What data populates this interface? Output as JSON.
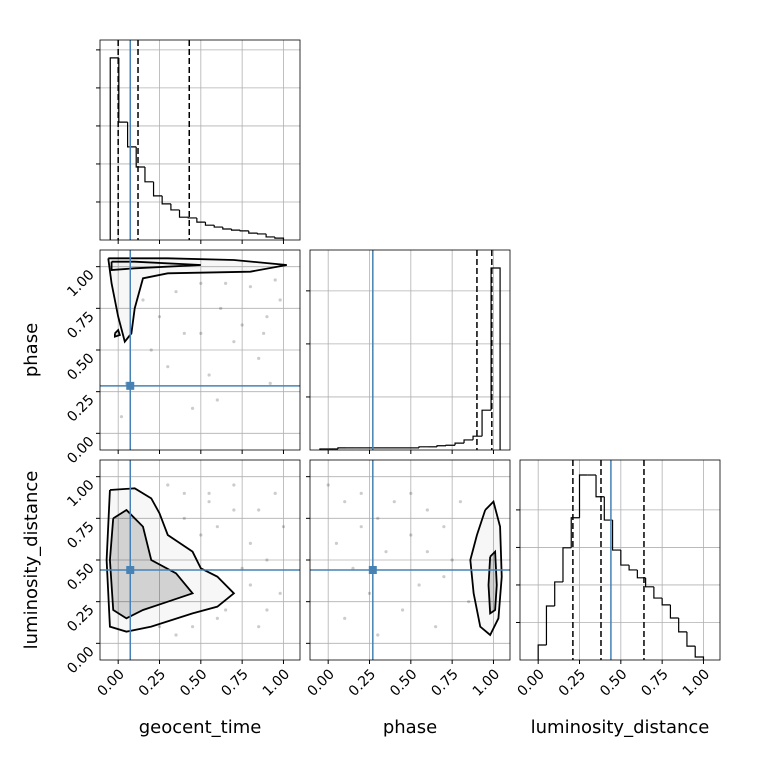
{
  "chart_data": [
    {
      "type": "histogram",
      "variable": "geocent_time",
      "color": "#000000",
      "truth_color": "#4682b4",
      "grid": true,
      "bins": [
        -0.048,
        0.004,
        0.057,
        0.109,
        0.162,
        0.214,
        0.266,
        0.319,
        0.371,
        0.424,
        0.476,
        0.528,
        0.581,
        0.633,
        0.686,
        0.738,
        0.79,
        0.843,
        0.895,
        0.948,
        1.0
      ],
      "counts": [
        4.79,
        3.1,
        2.45,
        1.92,
        1.53,
        1.16,
        0.95,
        0.79,
        0.6,
        0.58,
        0.47,
        0.39,
        0.34,
        0.29,
        0.26,
        0.24,
        0.18,
        0.16,
        0.08,
        0.05
      ],
      "truth": 0.073,
      "quantiles": [
        0.0,
        0.12,
        0.43
      ],
      "xlim": [
        -0.11,
        1.1
      ],
      "xticks": [
        0,
        0.25,
        0.5,
        0.75,
        1
      ],
      "ylim": [
        0,
        5.26
      ],
      "yticks": [
        1,
        2,
        3,
        4,
        5
      ]
    },
    {
      "type": "scatter",
      "y_label": "phase",
      "color": "#000000",
      "truth_color": "#4682b4",
      "grid": true,
      "x": [
        0.35,
        0.5,
        0.62,
        0.8,
        0.9,
        0.95,
        0.4,
        0.7,
        0.85,
        0.25,
        0.55,
        0.98,
        0.6,
        0.3,
        0.75,
        0.45,
        0.92,
        0.2,
        0.05,
        0.02,
        0.65,
        0.88,
        0.15,
        0.5
      ],
      "y": [
        0.85,
        0.9,
        0.75,
        0.88,
        0.7,
        0.92,
        0.6,
        0.55,
        0.45,
        0.7,
        0.35,
        0.8,
        0.2,
        0.4,
        0.65,
        0.15,
        0.3,
        0.5,
        0.3,
        0.1,
        0.9,
        0.6,
        0.8,
        0.6
      ],
      "contours": [
        {
          "x": [
            -0.06,
            0.3,
            0.7,
            1.02,
            0.8,
            0.3,
            0.15,
            0.1,
            0.08,
            0.04,
            0.0,
            -0.04,
            -0.06
          ],
          "y": [
            1.05,
            1.05,
            1.04,
            1.01,
            0.97,
            0.96,
            0.93,
            0.75,
            0.6,
            0.55,
            0.7,
            0.9,
            1.05
          ]
        },
        {
          "x": [
            -0.04,
            0.1,
            0.5,
            0.1,
            -0.04,
            -0.04
          ],
          "y": [
            1.03,
            1.03,
            1.01,
            0.99,
            0.98,
            1.03
          ]
        },
        {
          "x": [
            -0.02,
            0.0,
            0.01,
            -0.02,
            -0.02
          ],
          "y": [
            0.6,
            0.62,
            0.59,
            0.58,
            0.6
          ]
        }
      ],
      "truth_x": 0.073,
      "truth_y": 0.285,
      "xlim": [
        -0.11,
        1.1
      ],
      "xticks": [
        0,
        0.25,
        0.5,
        0.75,
        1
      ],
      "ylim": [
        -0.1,
        1.1
      ],
      "yticks": [
        {
          "value": 0,
          "label": "0.00"
        },
        {
          "value": 0.25,
          "label": "0.25"
        },
        {
          "value": 0.5,
          "label": "0.50"
        },
        {
          "value": 0.75,
          "label": "0.75"
        },
        {
          "value": 1,
          "label": "1.00"
        }
      ]
    },
    {
      "type": "histogram",
      "variable": "phase",
      "color": "#000000",
      "truth_color": "#4682b4",
      "grid": true,
      "bins": [
        -0.05,
        0.0045,
        0.059,
        0.1135,
        0.168,
        0.2225,
        0.277,
        0.3315,
        0.386,
        0.4405,
        0.495,
        0.5495,
        0.604,
        0.6585,
        0.713,
        0.7675,
        0.822,
        0.8765,
        0.931,
        0.9855,
        1.04
      ],
      "counts": [
        0.02,
        0.02,
        0.04,
        0.04,
        0.04,
        0.04,
        0.04,
        0.04,
        0.04,
        0.04,
        0.04,
        0.06,
        0.06,
        0.08,
        0.09,
        0.13,
        0.19,
        0.26,
        0.75,
        3.43
      ],
      "truth": 0.27,
      "quantiles": [
        0.9,
        0.99
      ],
      "xlim": [
        -0.11,
        1.1
      ],
      "xticks": [
        0,
        0.25,
        0.5,
        0.75,
        1
      ],
      "ylim": [
        0,
        3.77
      ],
      "yticks": [
        1,
        2,
        3
      ]
    },
    {
      "type": "scatter",
      "x_label": "geocent_time",
      "y_label": "luminosity_distance",
      "color": "#000000",
      "truth_color": "#4682b4",
      "grid": true,
      "x": [
        0.4,
        0.55,
        0.7,
        0.85,
        0.95,
        0.6,
        0.8,
        0.9,
        1.0,
        0.3,
        0.5,
        0.75,
        0.65,
        0.9,
        0.45,
        0.35,
        0.8,
        0.98,
        0.6,
        0.7,
        0.25,
        0.55,
        0.85,
        0.4
      ],
      "y": [
        0.9,
        0.85,
        0.95,
        0.8,
        0.9,
        0.7,
        0.6,
        0.5,
        0.7,
        0.95,
        0.65,
        0.45,
        0.2,
        0.2,
        0.1,
        0.05,
        0.35,
        0.3,
        0.15,
        0.8,
        0.1,
        0.9,
        0.1,
        0.75
      ],
      "contours": [
        {
          "x": [
            -0.05,
            0.1,
            0.2,
            0.25,
            0.3,
            0.45,
            0.5,
            0.6,
            0.7,
            0.6,
            0.45,
            0.2,
            0.05,
            -0.05,
            -0.07,
            -0.05
          ],
          "y": [
            0.92,
            0.93,
            0.87,
            0.78,
            0.65,
            0.55,
            0.45,
            0.4,
            0.3,
            0.22,
            0.18,
            0.1,
            0.07,
            0.1,
            0.5,
            0.92
          ]
        },
        {
          "x": [
            -0.03,
            0.05,
            0.15,
            0.2,
            0.35,
            0.45,
            0.3,
            0.15,
            0.05,
            -0.03,
            -0.05,
            -0.03
          ],
          "y": [
            0.75,
            0.8,
            0.7,
            0.5,
            0.42,
            0.3,
            0.25,
            0.2,
            0.15,
            0.2,
            0.5,
            0.75
          ]
        }
      ],
      "truth_x": 0.073,
      "truth_y": 0.44,
      "xlim": [
        -0.11,
        1.1
      ],
      "xticks": [
        {
          "value": 0,
          "label": "0.00"
        },
        {
          "value": 0.25,
          "label": "0.25"
        },
        {
          "value": 0.5,
          "label": "0.50"
        },
        {
          "value": 0.75,
          "label": "0.75"
        },
        {
          "value": 1,
          "label": "1.00"
        }
      ],
      "ylim": [
        -0.1,
        1.1
      ],
      "yticks": [
        {
          "value": 0,
          "label": "0.00"
        },
        {
          "value": 0.25,
          "label": "0.25"
        },
        {
          "value": 0.5,
          "label": "0.50"
        },
        {
          "value": 0.75,
          "label": "0.75"
        },
        {
          "value": 1,
          "label": "1.00"
        }
      ]
    },
    {
      "type": "scatter",
      "x_label": "phase",
      "color": "#000000",
      "truth_color": "#4682b4",
      "grid": true,
      "x": [
        0.0,
        0.1,
        0.2,
        0.3,
        0.4,
        0.5,
        0.6,
        0.7,
        0.8,
        0.05,
        0.15,
        0.25,
        0.35,
        0.45,
        0.55,
        0.65,
        0.75,
        0.85,
        0.1,
        0.3,
        0.5,
        0.7,
        0.2,
        0.6
      ],
      "y": [
        0.95,
        0.85,
        0.9,
        0.75,
        0.85,
        0.9,
        0.8,
        0.7,
        0.85,
        0.6,
        0.45,
        0.3,
        0.55,
        0.2,
        0.35,
        0.1,
        0.5,
        0.25,
        0.15,
        0.05,
        0.65,
        0.4,
        0.7,
        0.55
      ],
      "contours": [
        {
          "x": [
            0.95,
            1.0,
            1.04,
            1.05,
            1.03,
            0.98,
            0.92,
            0.88,
            0.86,
            0.9,
            0.95
          ],
          "y": [
            0.8,
            0.85,
            0.7,
            0.4,
            0.15,
            0.05,
            0.1,
            0.3,
            0.5,
            0.65,
            0.8
          ]
        },
        {
          "x": [
            0.98,
            1.01,
            1.02,
            1.01,
            0.98,
            0.97,
            0.98
          ],
          "y": [
            0.52,
            0.55,
            0.35,
            0.2,
            0.18,
            0.35,
            0.52
          ]
        }
      ],
      "truth_x": 0.27,
      "truth_y": 0.44,
      "xlim": [
        -0.11,
        1.1
      ],
      "xticks": [
        {
          "value": 0,
          "label": "0.00"
        },
        {
          "value": 0.25,
          "label": "0.25"
        },
        {
          "value": 0.5,
          "label": "0.50"
        },
        {
          "value": 0.75,
          "label": "0.75"
        },
        {
          "value": 1,
          "label": "1.00"
        }
      ],
      "ylim": [
        -0.1,
        1.1
      ],
      "yticks": [
        0,
        0.25,
        0.5,
        0.75,
        1
      ]
    },
    {
      "type": "histogram",
      "variable": "luminosity_distance",
      "x_label": "luminosity_distance",
      "color": "#000000",
      "truth_color": "#4682b4",
      "grid": true,
      "bins": [
        0,
        0.05,
        0.1,
        0.15,
        0.2,
        0.25,
        0.3,
        0.35,
        0.4,
        0.45,
        0.5,
        0.55,
        0.6,
        0.65,
        0.7,
        0.75,
        0.8,
        0.85,
        0.9,
        0.95,
        1.0
      ],
      "counts": [
        0.4,
        1.44,
        2.08,
        2.99,
        3.79,
        4.93,
        4.93,
        4.35,
        3.73,
        2.93,
        2.53,
        2.4,
        2.19,
        1.95,
        1.65,
        1.47,
        1.12,
        0.75,
        0.37,
        0.08
      ],
      "truth": 0.44,
      "quantiles": [
        0.21,
        0.38,
        0.64
      ],
      "xlim": [
        -0.11,
        1.1
      ],
      "xticks": [
        {
          "value": 0,
          "label": "0.00"
        },
        {
          "value": 0.25,
          "label": "0.25"
        },
        {
          "value": 0.5,
          "label": "0.50"
        },
        {
          "value": 0.75,
          "label": "0.75"
        },
        {
          "value": 1,
          "label": "1.00"
        }
      ],
      "ylim": [
        0,
        5.33
      ],
      "yticks": [
        1,
        2,
        3,
        4
      ]
    }
  ]
}
